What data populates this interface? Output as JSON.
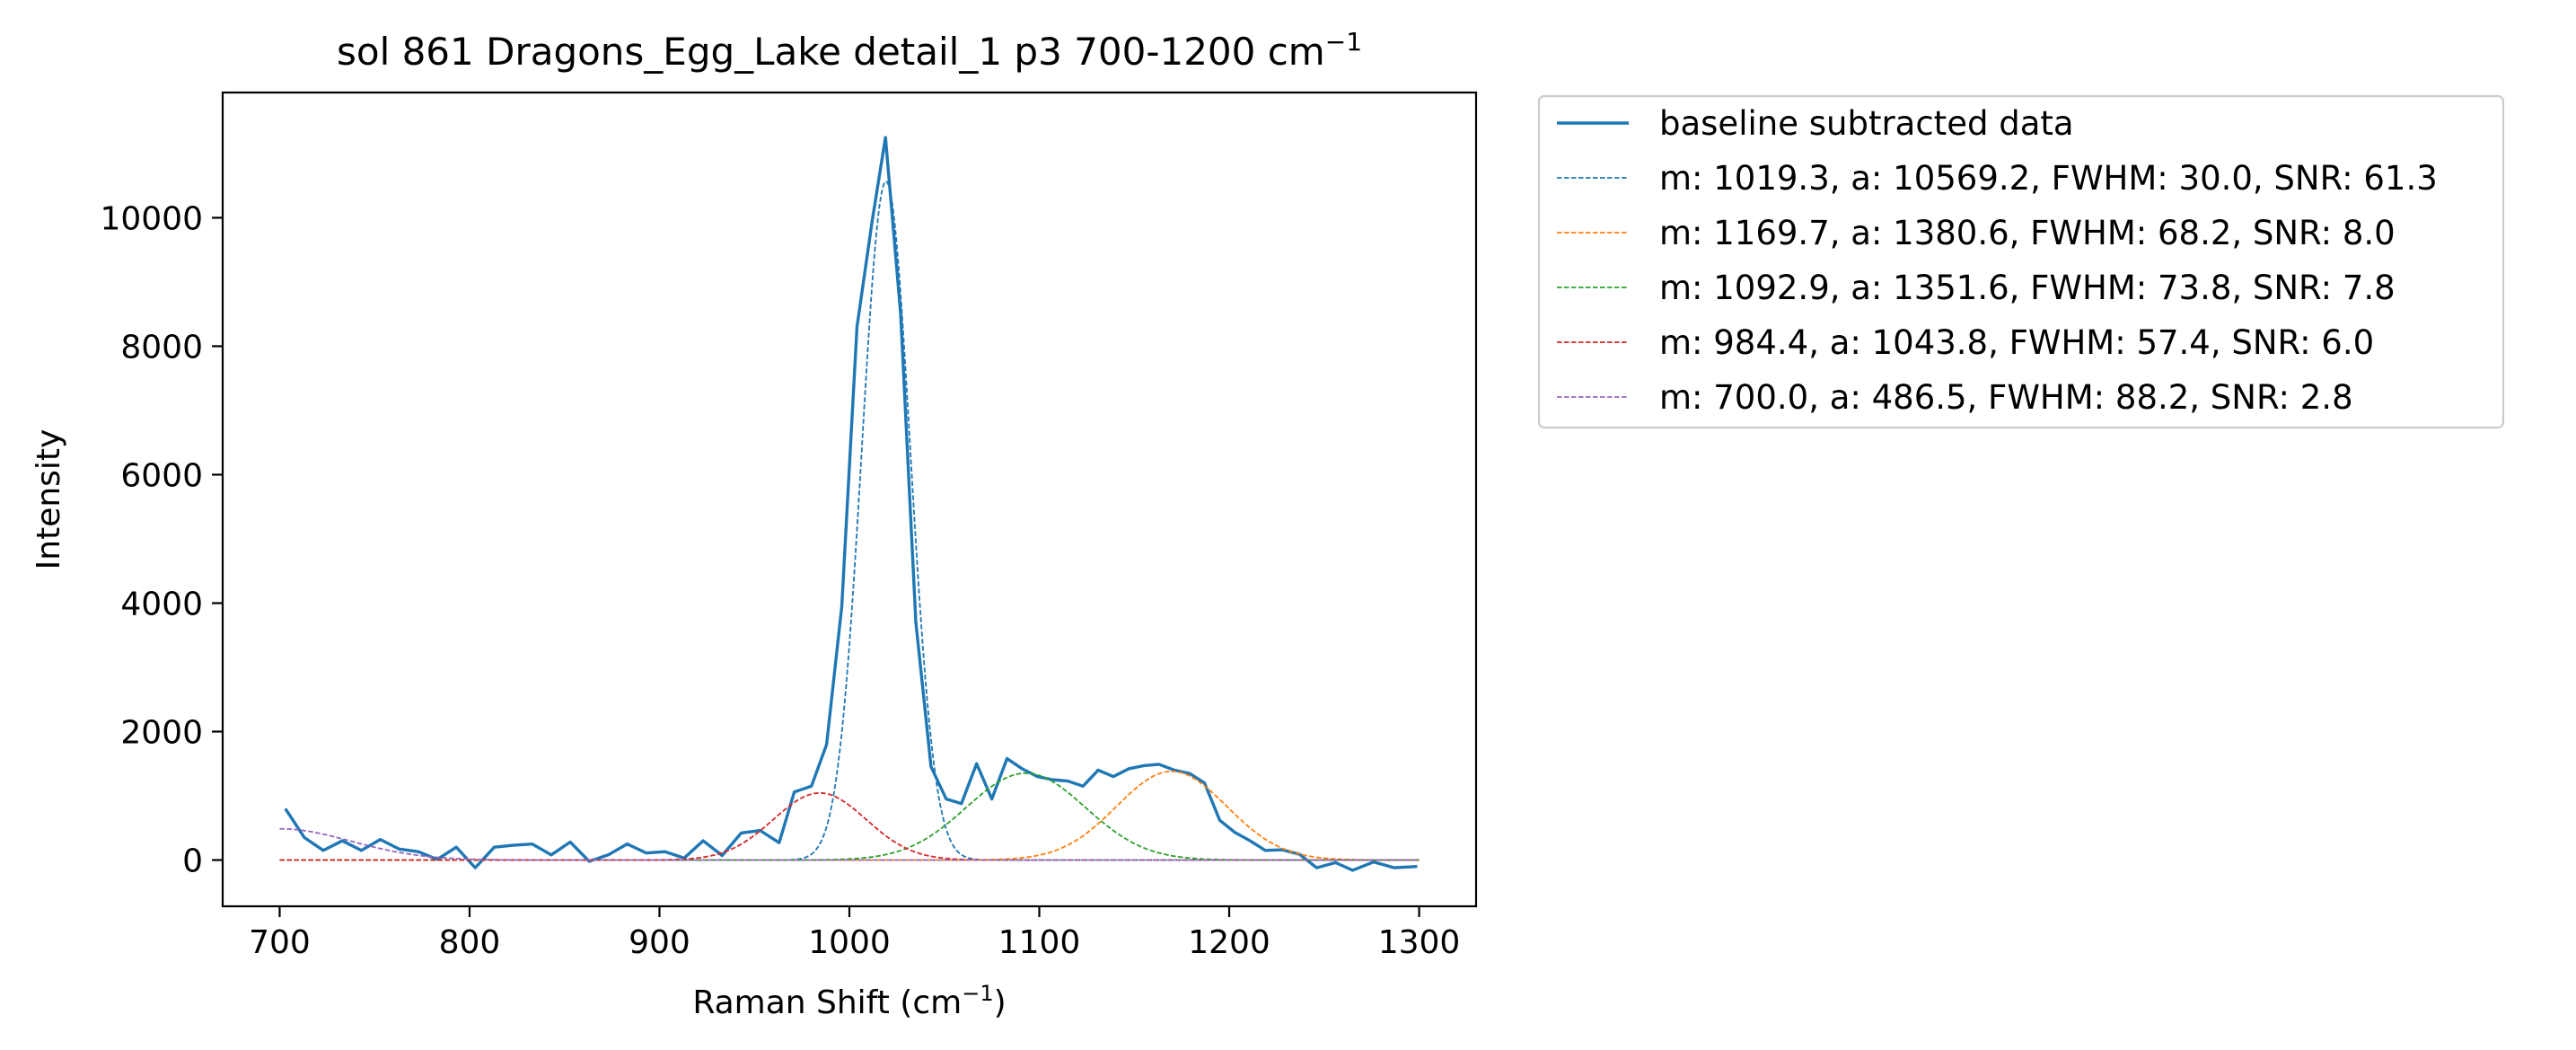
{
  "chart_data": {
    "type": "line",
    "title": "sol 861 Dragons_Egg_Lake detail_1 p3 700-1200 cm",
    "title_superscript": "−1",
    "xlabel": "Raman Shift (cm",
    "xlabel_superscript": "−1",
    "xlabel_suffix": ")",
    "ylabel": "Intensity",
    "xlim": [
      670,
      1330
    ],
    "ylim": [
      -720,
      11950
    ],
    "xticks": [
      700,
      800,
      900,
      1000,
      1100,
      1200,
      1300
    ],
    "yticks": [
      0,
      2000,
      4000,
      6000,
      8000,
      10000
    ],
    "grid": false,
    "legend_position": "outside-upper-right",
    "series": [
      {
        "name": "baseline subtracted data",
        "kind": "data",
        "color": "#1f77b4",
        "style": "solid",
        "x": [
          703,
          713,
          723,
          733,
          743,
          753,
          763,
          773,
          783,
          793,
          803,
          813,
          823,
          833,
          843,
          853,
          863,
          873,
          883,
          893,
          903,
          913,
          923,
          933,
          943,
          953,
          963,
          971,
          980,
          988,
          996,
          1004,
          1012,
          1019,
          1027,
          1035,
          1043,
          1051,
          1059,
          1067,
          1075,
          1083,
          1091,
          1099,
          1107,
          1115,
          1123,
          1131,
          1139,
          1147,
          1155,
          1163,
          1171,
          1179,
          1187,
          1195,
          1203,
          1211,
          1219,
          1228,
          1237,
          1246,
          1256,
          1265,
          1276,
          1287,
          1299
        ],
        "y": [
          800,
          350,
          150,
          300,
          150,
          320,
          170,
          130,
          10,
          200,
          -120,
          200,
          230,
          250,
          80,
          280,
          -20,
          80,
          250,
          110,
          130,
          30,
          300,
          70,
          420,
          460,
          270,
          1060,
          1150,
          1800,
          3950,
          8300,
          9950,
          11250,
          8500,
          3700,
          1450,
          950,
          880,
          1500,
          950,
          1580,
          1420,
          1300,
          1250,
          1230,
          1150,
          1400,
          1300,
          1420,
          1470,
          1490,
          1400,
          1350,
          1200,
          620,
          430,
          300,
          150,
          160,
          90,
          -120,
          -40,
          -160,
          -30,
          -120,
          -100
        ]
      },
      {
        "name": "m: 1019.3, a: 10569.2, FWHM: 30.0, SNR: 61.3",
        "kind": "gaussian",
        "color": "#1f77b4",
        "style": "dashed",
        "center": 1019.3,
        "amplitude": 10569.2,
        "fwhm": 30.0
      },
      {
        "name": "m: 1169.7, a: 1380.6, FWHM: 68.2, SNR: 8.0",
        "kind": "gaussian",
        "color": "#ff7f0e",
        "style": "dashed",
        "center": 1169.7,
        "amplitude": 1380.6,
        "fwhm": 68.2
      },
      {
        "name": "m: 1092.9, a: 1351.6, FWHM: 73.8, SNR: 7.8",
        "kind": "gaussian",
        "color": "#2ca02c",
        "style": "dashed",
        "center": 1092.9,
        "amplitude": 1351.6,
        "fwhm": 73.8
      },
      {
        "name": "m: 984.4, a: 1043.8, FWHM: 57.4, SNR: 6.0",
        "kind": "gaussian",
        "color": "#d62728",
        "style": "dashed",
        "center": 984.4,
        "amplitude": 1043.8,
        "fwhm": 57.4
      },
      {
        "name": "m: 700.0, a: 486.5, FWHM: 88.2, SNR: 2.8",
        "kind": "gaussian",
        "color": "#9467bd",
        "style": "dashed",
        "center": 700.0,
        "amplitude": 486.5,
        "fwhm": 88.2
      }
    ]
  }
}
